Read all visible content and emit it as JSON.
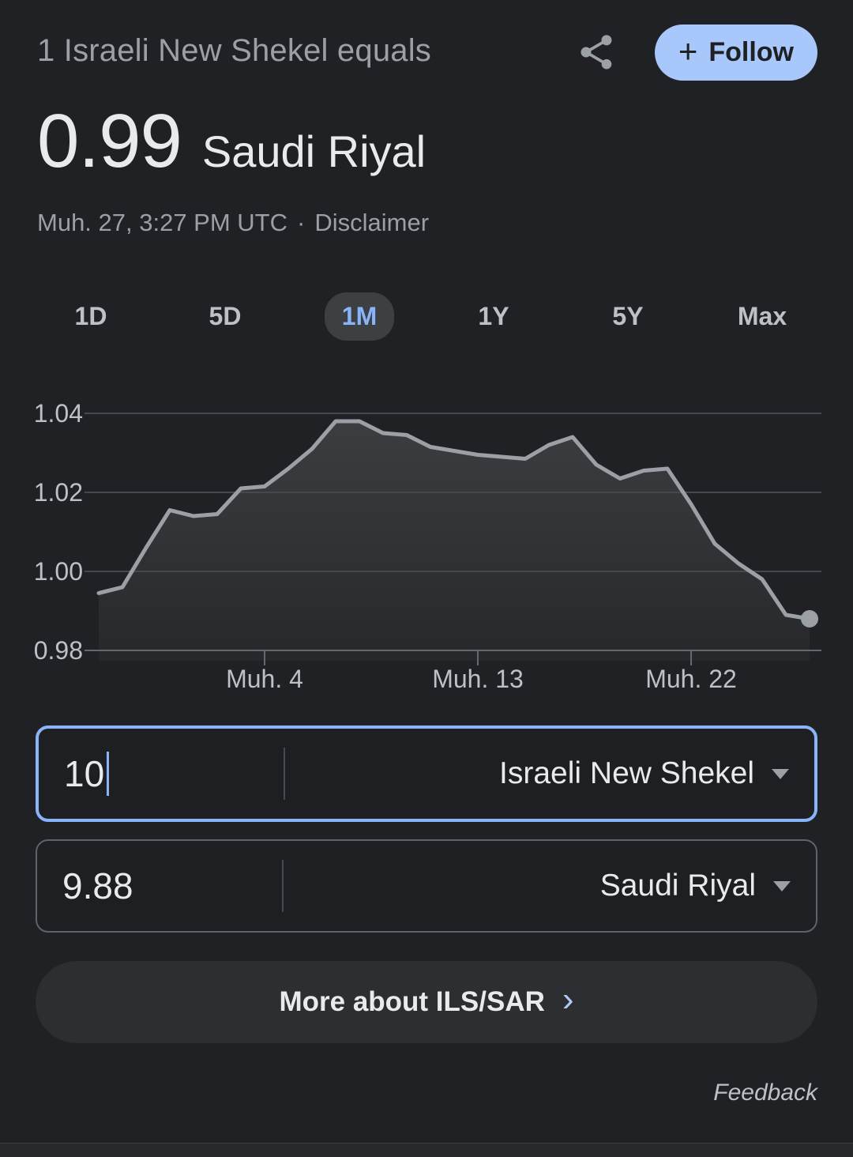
{
  "header": {
    "title": "1 Israeli New Shekel equals",
    "rate_value": "0.99",
    "rate_currency": "Saudi Riyal",
    "timestamp": "Muh. 27, 3:27 PM UTC",
    "separator": "·",
    "disclaimer_label": "Disclaimer",
    "follow_plus": "+",
    "follow_label": "Follow"
  },
  "tabs": [
    {
      "label": "1D",
      "active": false
    },
    {
      "label": "5D",
      "active": false
    },
    {
      "label": "1M",
      "active": true
    },
    {
      "label": "1Y",
      "active": false
    },
    {
      "label": "5Y",
      "active": false
    },
    {
      "label": "Max",
      "active": false
    }
  ],
  "chart_data": {
    "type": "area",
    "title": "ILS/SAR exchange rate, 1 month",
    "x_unit": "day",
    "values": [
      0.9945,
      0.996,
      1.006,
      1.0155,
      1.014,
      1.0145,
      1.021,
      1.0215,
      1.026,
      1.031,
      1.038,
      1.038,
      1.035,
      1.0345,
      1.0315,
      1.0305,
      1.0295,
      1.029,
      1.0285,
      1.032,
      1.034,
      1.027,
      1.0235,
      1.0255,
      1.026,
      1.017,
      1.007,
      1.002,
      0.998,
      0.989,
      0.988
    ],
    "x_tick_labels": [
      "Muh. 4",
      "Muh. 13",
      "Muh. 22"
    ],
    "x_tick_indices": [
      7,
      16,
      25
    ],
    "y_ticks": [
      1.04,
      1.02,
      1.0,
      0.98
    ],
    "y_tick_labels": [
      "1.04",
      "1.02",
      "1.00",
      "0.98"
    ],
    "ylim": [
      0.978,
      1.044
    ],
    "grid": true,
    "legend": "none",
    "endpoint_marker": true,
    "last_value": 0.988
  },
  "converter": {
    "from": {
      "amount": "10",
      "currency": "Israeli New Shekel"
    },
    "to": {
      "amount": "9.88",
      "currency": "Saudi Riyal"
    }
  },
  "more_button": {
    "label": "More about ILS/SAR",
    "chevron": "›"
  },
  "feedback_label": "Feedback",
  "colors": {
    "background": "#202124",
    "accent_blue": "#8ab4f8",
    "follow_chip": "#a8c7fa",
    "line": "#9aa0a6",
    "grid": "#45484d",
    "axis_base": "#64686d",
    "tick_label": "#bdc1c6",
    "text_primary": "#e8eaed",
    "text_secondary": "#9aa0a6"
  }
}
